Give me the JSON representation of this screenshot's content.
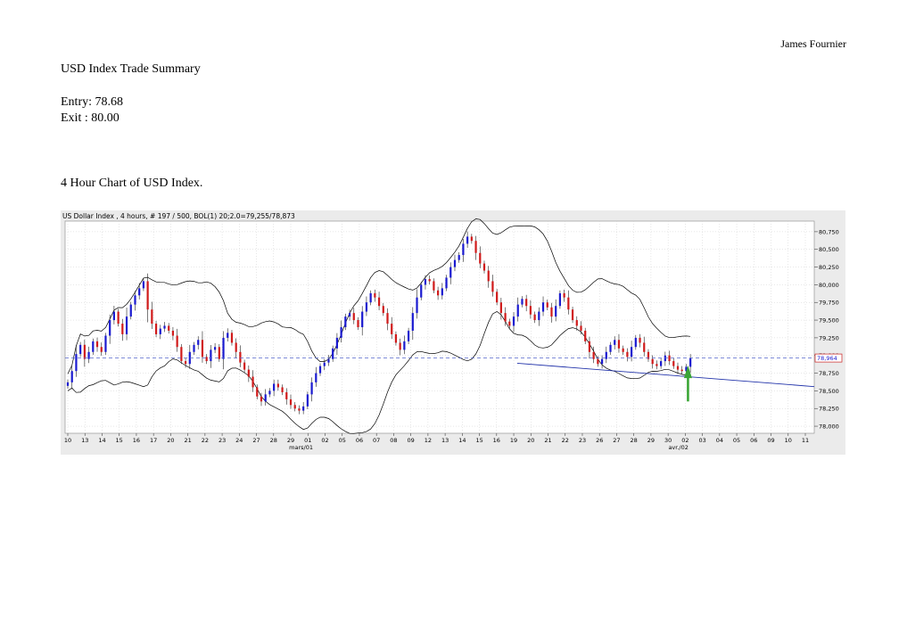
{
  "header": {
    "author": "James Fournier"
  },
  "document": {
    "title": "USD Index Trade Summary",
    "entry": "Entry: 78.68",
    "exit": "Exit : 80.00",
    "chart_caption": "4 Hour Chart of USD Index."
  },
  "chart_data": {
    "type": "candlestick",
    "title": "US Dollar Index , 4 hours, # 197 / 500, BOL(1) 20;2.0=79,255/78,873",
    "ylim": [
      77.9,
      80.9
    ],
    "y_ticks": [
      78.0,
      78.25,
      78.5,
      78.75,
      79.0,
      79.25,
      79.5,
      79.75,
      80.0,
      80.25,
      80.5,
      80.75
    ],
    "y_tick_labels": [
      "78,000",
      "78,250",
      "78,500",
      "78,750",
      "79,000",
      "79,250",
      "79,500",
      "79,750",
      "80,000",
      "80,250",
      "80,500",
      "80,750"
    ],
    "x_labels": [
      "10",
      "13",
      "14",
      "15",
      "16",
      "17",
      "20",
      "21",
      "22",
      "23",
      "24",
      "27",
      "28",
      "29",
      "01",
      "02",
      "05",
      "06",
      "07",
      "08",
      "09",
      "12",
      "13",
      "14",
      "15",
      "16",
      "19",
      "20",
      "21",
      "22",
      "23",
      "26",
      "27",
      "28",
      "29",
      "30",
      "02",
      "03",
      "04",
      "05",
      "06",
      "09",
      "10",
      "11"
    ],
    "month_labels": [
      {
        "label": "mars/01",
        "index": 13.6
      },
      {
        "label": "avr./02",
        "index": 35.6
      }
    ],
    "current_price": 78.964,
    "current_price_label": "78,964",
    "colors": {
      "up": "#1a1ad0",
      "down": "#d01a1a",
      "band": "#000000",
      "trend": "#2233aa",
      "arrow": "#3aa535",
      "price_line": "#5566cc"
    },
    "closes": [
      78.62,
      78.78,
      79.02,
      79.15,
      78.95,
      79.05,
      79.2,
      79.12,
      79.05,
      79.28,
      79.5,
      79.62,
      79.45,
      79.3,
      79.55,
      79.72,
      79.85,
      79.95,
      80.05,
      79.65,
      79.45,
      79.3,
      79.38,
      79.42,
      79.35,
      79.28,
      79.12,
      78.92,
      78.88,
      79.05,
      79.15,
      79.22,
      78.98,
      78.92,
      79.08,
      79.12,
      78.95,
      79.25,
      79.32,
      79.18,
      79.05,
      78.9,
      78.8,
      78.7,
      78.55,
      78.42,
      78.35,
      78.45,
      78.5,
      78.6,
      78.55,
      78.48,
      78.38,
      78.3,
      78.25,
      78.22,
      78.28,
      78.45,
      78.62,
      78.75,
      78.85,
      78.9,
      78.95,
      79.1,
      79.25,
      79.4,
      79.55,
      79.6,
      79.5,
      79.4,
      79.62,
      79.75,
      79.88,
      79.82,
      79.7,
      79.6,
      79.45,
      79.3,
      79.18,
      79.08,
      79.2,
      79.35,
      79.6,
      79.82,
      80.0,
      80.08,
      80.05,
      79.92,
      79.85,
      79.95,
      80.1,
      80.25,
      80.35,
      80.42,
      80.58,
      80.68,
      80.62,
      80.45,
      80.3,
      80.2,
      80.05,
      79.9,
      79.75,
      79.6,
      79.48,
      79.42,
      79.55,
      79.72,
      79.8,
      79.7,
      79.58,
      79.5,
      79.62,
      79.75,
      79.68,
      79.55,
      79.7,
      79.88,
      79.82,
      79.65,
      79.5,
      79.42,
      79.35,
      79.2,
      79.05,
      78.95,
      78.88,
      78.95,
      79.05,
      79.15,
      79.22,
      79.1,
      79.05,
      78.98,
      79.12,
      79.25,
      79.18,
      79.05,
      78.95,
      78.88,
      78.85,
      78.92,
      79.0,
      78.92,
      78.85,
      78.8,
      78.78,
      78.84,
      78.96
    ]
  }
}
